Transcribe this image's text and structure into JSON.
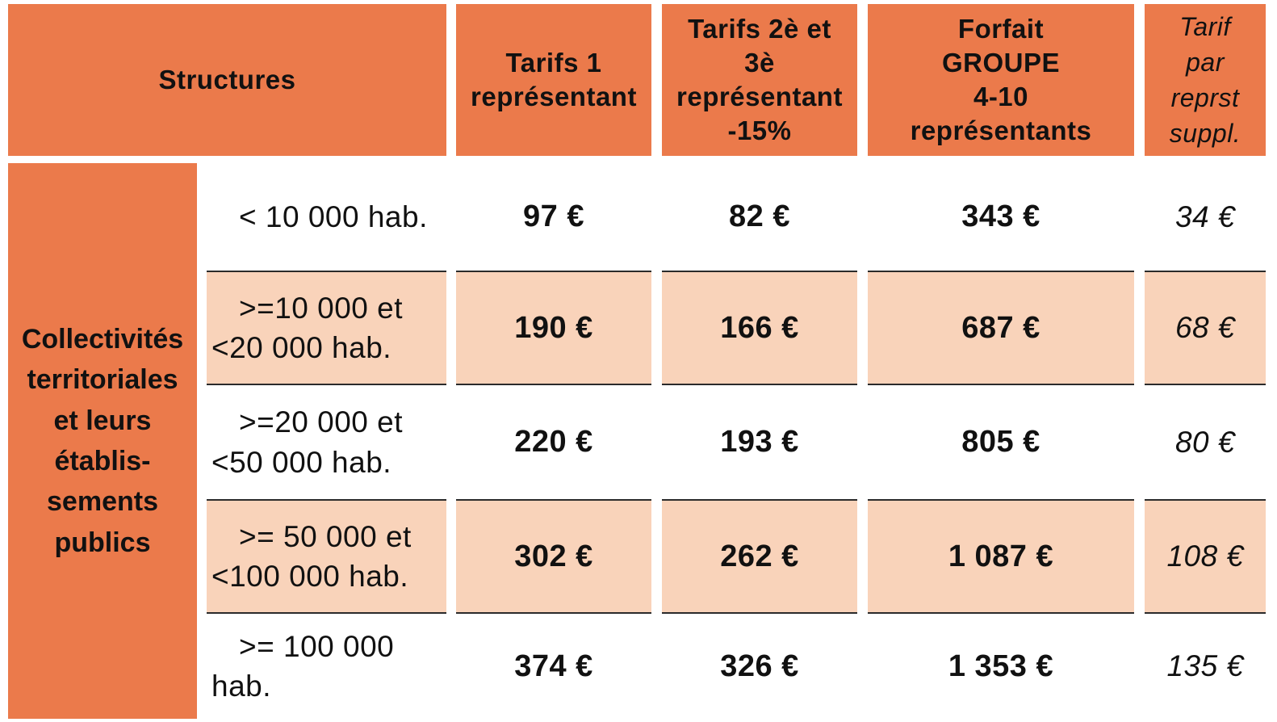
{
  "colors": {
    "orange": "#EB7A4B",
    "peach": "#F9D3BA",
    "text": "#111111",
    "cell_border": "#2B2B2B"
  },
  "table": {
    "headers": {
      "structures": "Structures",
      "tarif1": "Tarifs 1\nreprésentant",
      "tarif23": "Tarifs 2è et\n3è\nreprésentant\n-15%",
      "forfait": "Forfait\nGROUPE\n4-10\nreprésentants",
      "suppl": "Tarif\npar\nreprst\nsuppl."
    },
    "category": "Collectivités\nterritoriales\net leurs\nétablis-\nsements\npublics",
    "rows": [
      {
        "size": "< 10 000 hab.",
        "tarif1": "97 €",
        "tarif23": "82 €",
        "forfait": "343 €",
        "suppl": "34 €",
        "highlight": false
      },
      {
        "size": ">=10 000 et\n<20 000 hab.",
        "tarif1": "190 €",
        "tarif23": "166 €",
        "forfait": "687 €",
        "suppl": "68 €",
        "highlight": true
      },
      {
        "size": ">=20 000 et\n<50 000 hab.",
        "tarif1": "220 €",
        "tarif23": "193 €",
        "forfait": "805 €",
        "suppl": "80 €",
        "highlight": false
      },
      {
        "size": ">= 50 000 et\n<100 000 hab.",
        "tarif1": "302 €",
        "tarif23": "262 €",
        "forfait": "1 087 €",
        "suppl": "108 €",
        "highlight": true
      },
      {
        "size": ">= 100 000\nhab.",
        "tarif1": "374 €",
        "tarif23": "326 €",
        "forfait": "1 353 €",
        "suppl": "135 €",
        "highlight": false
      }
    ]
  }
}
